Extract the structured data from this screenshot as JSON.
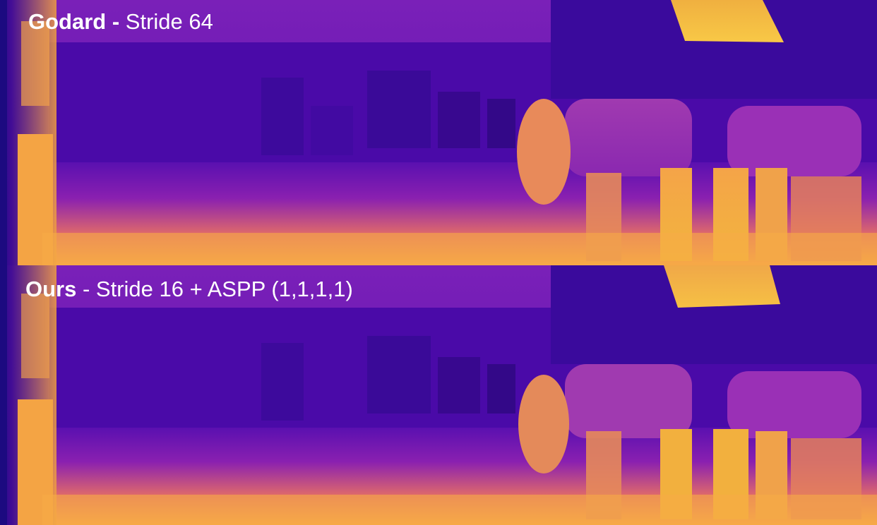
{
  "figure": {
    "panels": [
      {
        "method": "Godard",
        "separator": " - ",
        "setting": "Stride 64"
      },
      {
        "method": "Ours",
        "separator": " - ",
        "setting": "Stride 16 + ASPP (1,1,1,1)"
      }
    ],
    "colormap": {
      "far": "#2a0a9a",
      "mid": "#8a1fb8",
      "near": "#f9c23a"
    }
  }
}
